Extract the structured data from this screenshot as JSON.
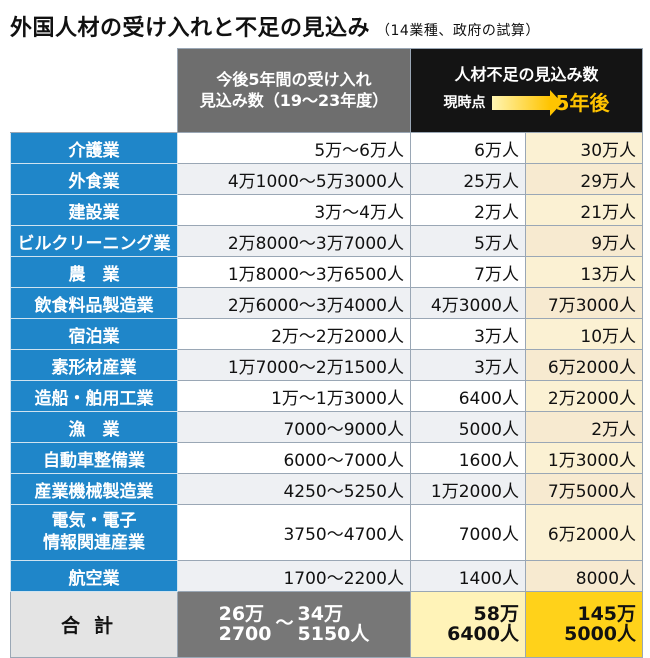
{
  "title": "外国人材の受け入れと不足の見込み",
  "subtitle": "（14業種、政府の試算）",
  "header": {
    "accept_line1": "今後5年間の受け入れ",
    "accept_line2": "見込み数（19〜23年度）",
    "shortage_line1": "人材不足の見込み数",
    "shortage_now": "現時点",
    "shortage_after": "5年後"
  },
  "rows": [
    {
      "industry": "介護業",
      "accept": "5万〜6万人",
      "now": "6万人",
      "future": "30万人"
    },
    {
      "industry": "外食業",
      "accept": "4万1000〜5万3000人",
      "now": "25万人",
      "future": "29万人"
    },
    {
      "industry": "建設業",
      "accept": "3万〜4万人",
      "now": "2万人",
      "future": "21万人"
    },
    {
      "industry": "ビルクリーニング業",
      "accept": "2万8000〜3万7000人",
      "now": "5万人",
      "future": "9万人"
    },
    {
      "industry": "農　業",
      "accept": "1万8000〜3万6500人",
      "now": "7万人",
      "future": "13万人"
    },
    {
      "industry": "飲食料品製造業",
      "accept": "2万6000〜3万4000人",
      "now": "4万3000人",
      "future": "7万3000人"
    },
    {
      "industry": "宿泊業",
      "accept": "2万〜2万2000人",
      "now": "3万人",
      "future": "10万人"
    },
    {
      "industry": "素形材産業",
      "accept": "1万7000〜2万1500人",
      "now": "3万人",
      "future": "6万2000人"
    },
    {
      "industry": "造船・舶用工業",
      "accept": "1万〜1万3000人",
      "now": "6400人",
      "future": "2万2000人"
    },
    {
      "industry": "漁　業",
      "accept": "7000〜9000人",
      "now": "5000人",
      "future": "2万人"
    },
    {
      "industry": "自動車整備業",
      "accept": "6000〜7000人",
      "now": "1600人",
      "future": "1万3000人"
    },
    {
      "industry": "産業機械製造業",
      "accept": "4250〜5250人",
      "now": "1万2000人",
      "future": "7万5000人"
    },
    {
      "industry_line1": "電気・電子",
      "industry_line2": "情報関連産業",
      "accept": "3750〜4700人",
      "now": "7000人",
      "future": "6万2000人"
    },
    {
      "industry": "航空業",
      "accept": "1700〜2200人",
      "now": "1400人",
      "future": "8000人"
    }
  ],
  "total": {
    "label": "合計",
    "accept_low_1": "26万",
    "accept_low_2": "2700",
    "accept_sep": "〜",
    "accept_high_1": "34万",
    "accept_high_2": "5150人",
    "now_1": "58万",
    "now_2": "6400人",
    "future_1": "145万",
    "future_2": "5000人"
  },
  "colors": {
    "industry_bg": "#1f86c9",
    "accept_header_bg": "#6e6e6e",
    "shortage_header_bg": "#141414",
    "accent_yellow": "#ffc400",
    "future_col_bg": "#fbf1d3"
  }
}
